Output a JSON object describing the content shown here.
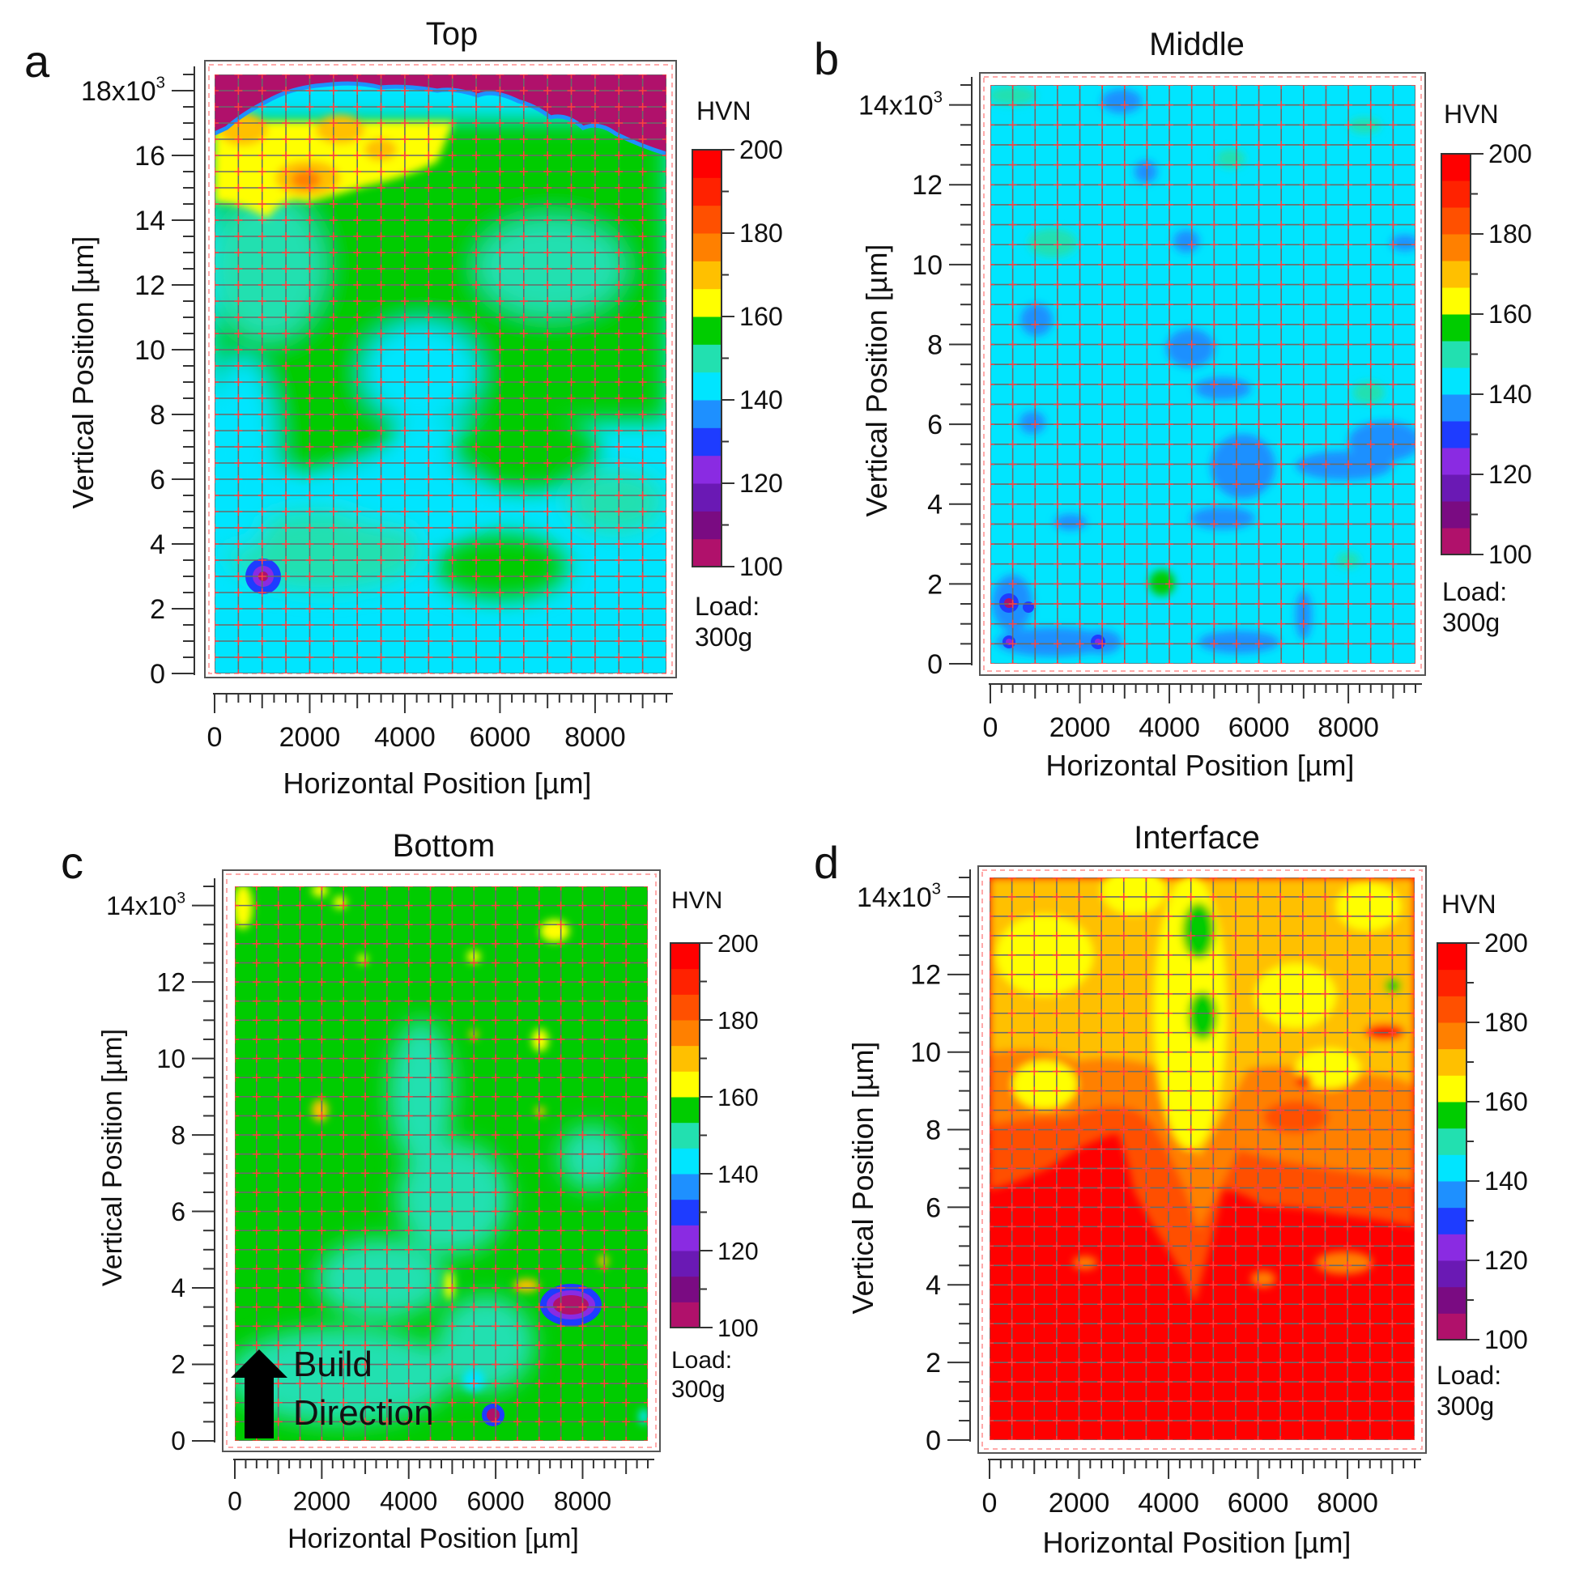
{
  "chart_data": [
    {
      "panel_letter": "a",
      "title": "Top",
      "type": "heatmap",
      "xlabel": "Horizontal Position [µm]",
      "ylabel": "Vertical Position [µm]",
      "xlim": [
        0,
        9500
      ],
      "ylim": [
        0,
        18500
      ],
      "xticks": [
        0,
        2000,
        4000,
        6000,
        8000
      ],
      "xtick_labels": [
        "0",
        "2000",
        "4000",
        "6000",
        "8000"
      ],
      "yticks": [
        0,
        2000,
        4000,
        6000,
        8000,
        10000,
        12000,
        14000,
        16000,
        18000
      ],
      "ytick_labels": [
        "0",
        "2",
        "4",
        "6",
        "8",
        "10",
        "12",
        "14",
        "16",
        "18x10³"
      ],
      "colorbar": {
        "label": "HVN",
        "range": [
          100,
          200
        ],
        "ticks": [
          "100",
          "120",
          "140",
          "160",
          "180",
          "200"
        ]
      },
      "load_note": [
        "Load:",
        "300g"
      ],
      "regions_hvn_estimate": [
        {
          "region": "upper rim (unmeasured)",
          "hvn": 100
        },
        {
          "region": "top band y 14000-17000 µm, x 0-5000 µm",
          "hvn": 165
        },
        {
          "region": "bulk y 8000-14000 µm",
          "hvn": 150
        },
        {
          "region": "lower field y 0-8000 µm",
          "hvn": 140
        },
        {
          "region": "spot x 1000 µm, y 3000 µm",
          "hvn": 110
        }
      ],
      "grid_points": {
        "x_step_um": 500,
        "y_step_um": 500
      }
    },
    {
      "panel_letter": "b",
      "title": "Middle",
      "type": "heatmap",
      "xlabel": "Horizontal Position [µm]",
      "ylabel": "Vertical Position [µm]",
      "xlim": [
        0,
        9500
      ],
      "ylim": [
        0,
        14500
      ],
      "xticks": [
        0,
        2000,
        4000,
        6000,
        8000
      ],
      "xtick_labels": [
        "0",
        "2000",
        "4000",
        "6000",
        "8000"
      ],
      "yticks": [
        0,
        2000,
        4000,
        6000,
        8000,
        10000,
        12000,
        14000
      ],
      "ytick_labels": [
        "0",
        "2",
        "4",
        "6",
        "8",
        "10",
        "12",
        "14x10³"
      ],
      "colorbar": {
        "label": "HVN",
        "range": [
          100,
          200
        ],
        "ticks": [
          "100",
          "120",
          "140",
          "160",
          "180",
          "200"
        ]
      },
      "load_note": [
        "Load:",
        "300g"
      ],
      "regions_hvn_estimate": [
        {
          "region": "bulk",
          "hvn": 140
        },
        {
          "region": "scattered patches",
          "hvn": 135
        },
        {
          "region": "spots near x 500-2500 µm, y 500-1500 µm",
          "hvn": 125
        }
      ],
      "grid_points": {
        "x_step_um": 500,
        "y_step_um": 500
      }
    },
    {
      "panel_letter": "c",
      "title": "Bottom",
      "type": "heatmap",
      "xlabel": "Horizontal Position [µm]",
      "ylabel": "Vertical Position [µm]",
      "xlim": [
        0,
        9500
      ],
      "ylim": [
        0,
        14500
      ],
      "xticks": [
        0,
        2000,
        4000,
        6000,
        8000
      ],
      "xtick_labels": [
        "0",
        "2000",
        "4000",
        "6000",
        "8000"
      ],
      "yticks": [
        0,
        2000,
        4000,
        6000,
        8000,
        10000,
        12000,
        14000
      ],
      "ytick_labels": [
        "0",
        "2",
        "4",
        "6",
        "8",
        "10",
        "12",
        "14x10³"
      ],
      "colorbar": {
        "label": "HVN",
        "range": [
          100,
          200
        ],
        "ticks": [
          "100",
          "120",
          "140",
          "160",
          "180",
          "200"
        ]
      },
      "load_note": [
        "Load:",
        "300g"
      ],
      "annotation": [
        "Build",
        "Direction"
      ],
      "regions_hvn_estimate": [
        {
          "region": "bulk",
          "hvn": 155
        },
        {
          "region": "lower-middle lobe",
          "hvn": 148
        },
        {
          "region": "spot x 7700 µm, y 3500 µm",
          "hvn": 110
        },
        {
          "region": "spot x 6000 µm, y 500 µm",
          "hvn": 115
        }
      ],
      "grid_points": {
        "x_step_um": 500,
        "y_step_um": 500
      }
    },
    {
      "panel_letter": "d",
      "title": "Interface",
      "type": "heatmap",
      "xlabel": "Horizontal Position [µm]",
      "ylabel": "Vertical Position [µm]",
      "xlim": [
        0,
        9500
      ],
      "ylim": [
        0,
        14500
      ],
      "xticks": [
        0,
        2000,
        4000,
        6000,
        8000
      ],
      "xtick_labels": [
        "0",
        "2000",
        "4000",
        "6000",
        "8000"
      ],
      "yticks": [
        0,
        2000,
        4000,
        6000,
        8000,
        10000,
        12000,
        14000
      ],
      "ytick_labels": [
        "0",
        "2",
        "4",
        "6",
        "8",
        "10",
        "12",
        "14x10³"
      ],
      "colorbar": {
        "label": "HVN",
        "range": [
          100,
          200
        ],
        "ticks": [
          "100",
          "120",
          "140",
          "160",
          "180",
          "200"
        ]
      },
      "load_note": [
        "Load:",
        "300g"
      ],
      "regions_hvn_estimate": [
        {
          "region": "lower field y 0-5500 µm",
          "hvn": 195
        },
        {
          "region": "transition y 5500-8500 µm",
          "hvn": 182
        },
        {
          "region": "upper field y 8500-14500 µm",
          "hvn": 172
        },
        {
          "region": "vertical band x 4500-5500 µm",
          "hvn": 165
        }
      ],
      "grid_points": {
        "x_step_um": 500,
        "y_step_um": 500
      }
    }
  ],
  "colors": {
    "colorbar_bands": [
      "#b0116b",
      "#7a0b82",
      "#6a19b4",
      "#8a2be2",
      "#1e3cff",
      "#1e90ff",
      "#00e5ff",
      "#22e0b0",
      "#00cc00",
      "#ffff00",
      "#ffc000",
      "#ff8000",
      "#ff5000",
      "#ff2200",
      "#ff0000"
    ],
    "grid_line": "#6a6a6a",
    "grid_cross": "#ff4040",
    "frame_border": "#ffaaaa"
  }
}
